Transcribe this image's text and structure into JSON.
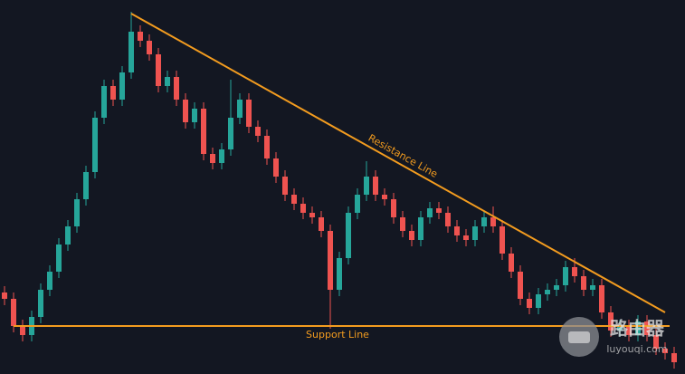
{
  "chart_data": {
    "type": "candlestick",
    "ylim": [
      0,
      413
    ],
    "up_color": "#26a69a",
    "down_color": "#ef5350",
    "open": [
      90,
      83,
      53,
      43,
      63,
      93,
      113,
      143,
      163,
      193,
      223,
      283,
      318,
      303,
      333,
      378,
      368,
      353,
      318,
      328,
      303,
      278,
      293,
      243,
      233,
      248,
      283,
      303,
      273,
      263,
      238,
      218,
      198,
      188,
      178,
      173,
      158,
      93,
      128,
      178,
      198,
      218,
      198,
      193,
      173,
      158,
      148,
      173,
      183,
      178,
      163,
      153,
      148,
      163,
      173,
      163,
      133,
      113,
      83,
      73,
      88,
      93,
      98,
      118,
      108,
      93,
      98,
      68,
      48,
      53,
      43,
      58,
      43,
      28,
      23
    ],
    "high": [
      97,
      90,
      60,
      70,
      100,
      120,
      150,
      170,
      200,
      230,
      290,
      325,
      325,
      340,
      400,
      385,
      375,
      360,
      335,
      335,
      310,
      300,
      300,
      250,
      255,
      325,
      310,
      310,
      280,
      270,
      245,
      225,
      205,
      195,
      185,
      180,
      165,
      135,
      185,
      205,
      235,
      225,
      205,
      200,
      180,
      165,
      180,
      190,
      190,
      185,
      170,
      160,
      170,
      180,
      185,
      170,
      140,
      120,
      90,
      95,
      100,
      105,
      125,
      128,
      115,
      105,
      105,
      75,
      60,
      60,
      65,
      65,
      50,
      35,
      30
    ],
    "low": [
      76,
      46,
      36,
      36,
      56,
      86,
      106,
      136,
      156,
      186,
      216,
      276,
      296,
      296,
      326,
      361,
      346,
      311,
      311,
      296,
      271,
      271,
      236,
      226,
      226,
      241,
      276,
      266,
      256,
      231,
      211,
      191,
      181,
      171,
      166,
      151,
      50,
      86,
      121,
      171,
      191,
      191,
      186,
      166,
      151,
      141,
      141,
      166,
      171,
      156,
      146,
      141,
      141,
      156,
      156,
      126,
      106,
      76,
      66,
      66,
      81,
      86,
      91,
      101,
      86,
      86,
      61,
      41,
      41,
      36,
      36,
      36,
      21,
      16,
      6
    ],
    "close": [
      83,
      53,
      43,
      63,
      93,
      113,
      143,
      163,
      193,
      223,
      283,
      318,
      303,
      333,
      378,
      368,
      353,
      318,
      328,
      303,
      278,
      293,
      243,
      233,
      248,
      283,
      303,
      273,
      263,
      238,
      218,
      198,
      188,
      178,
      173,
      158,
      93,
      128,
      178,
      198,
      218,
      198,
      193,
      173,
      158,
      148,
      173,
      183,
      178,
      163,
      153,
      148,
      163,
      173,
      163,
      133,
      113,
      83,
      73,
      88,
      93,
      98,
      118,
      108,
      93,
      98,
      68,
      48,
      53,
      43,
      58,
      43,
      28,
      23,
      13
    ],
    "resistance": {
      "label": "Resistance Line",
      "from_index": 14,
      "from_value": 398,
      "to_index": 73,
      "to_value": 68
    },
    "support": {
      "label": "Support Line",
      "value": 53
    },
    "line_color": "#f39c1f"
  },
  "watermark": {
    "name": "路由器",
    "url": "luyouqi.com"
  }
}
